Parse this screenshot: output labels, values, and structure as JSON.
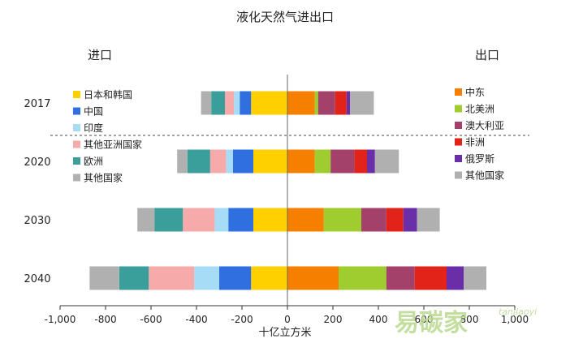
{
  "chart_data": {
    "type": "bar",
    "orientation": "horizontal-stacked-diverging",
    "title": "液化天然气进出口",
    "left_group_label": "进口",
    "right_group_label": "出口",
    "xlabel": "十亿立方米",
    "xlim": [
      -1000,
      1000
    ],
    "xticks": [
      -1000,
      -800,
      -600,
      -400,
      -200,
      0,
      200,
      400,
      600,
      800,
      1000
    ],
    "xtick_labels": [
      "-1,000",
      "-800",
      "-600",
      "-400",
      "-200",
      "0",
      "200",
      "400",
      "600",
      "800",
      "1,000"
    ],
    "categories": [
      "2017",
      "2020",
      "2030",
      "2040"
    ],
    "grid": false,
    "import_series": [
      {
        "name": "日本和韩国",
        "color": "#ffd000",
        "values": [
          160,
          150,
          150,
          160
        ]
      },
      {
        "name": "中国",
        "color": "#2f6fe0",
        "values": [
          50,
          90,
          110,
          140
        ]
      },
      {
        "name": "印度",
        "color": "#a6dcf5",
        "values": [
          25,
          30,
          60,
          110
        ]
      },
      {
        "name": "其他亚洲国家",
        "color": "#f7aaaa",
        "values": [
          40,
          70,
          140,
          200
        ]
      },
      {
        "name": "欧洲",
        "color": "#3a9e9a",
        "values": [
          60,
          100,
          125,
          130
        ]
      },
      {
        "name": "其他国家",
        "color": "#b0b0b0",
        "values": [
          45,
          45,
          75,
          130
        ]
      }
    ],
    "export_series": [
      {
        "name": "中东",
        "color": "#f77f00",
        "values": [
          120,
          120,
          160,
          225
        ]
      },
      {
        "name": "北美洲",
        "color": "#9fcc2e",
        "values": [
          15,
          70,
          165,
          210
        ]
      },
      {
        "name": "澳大利亚",
        "color": "#a3416b",
        "values": [
          75,
          105,
          110,
          125
        ]
      },
      {
        "name": "非洲",
        "color": "#e2231a",
        "values": [
          50,
          55,
          75,
          140
        ]
      },
      {
        "name": "俄罗斯",
        "color": "#6a2fa8",
        "values": [
          15,
          35,
          60,
          75
        ]
      },
      {
        "name": "其他国家",
        "color": "#b0b0b0",
        "values": [
          105,
          105,
          100,
          100
        ]
      }
    ],
    "legend_left": [
      "日本和韩国",
      "中国",
      "印度",
      "其他亚洲国家",
      "欧洲",
      "其他国家"
    ],
    "legend_right": [
      "中东",
      "北美洲",
      "澳大利亚",
      "非洲",
      "俄罗斯",
      "其他国家"
    ],
    "legend_placement": "left and right of bars"
  },
  "watermark": {
    "main": "易碳家",
    "sub": "tanjiaoyi"
  }
}
